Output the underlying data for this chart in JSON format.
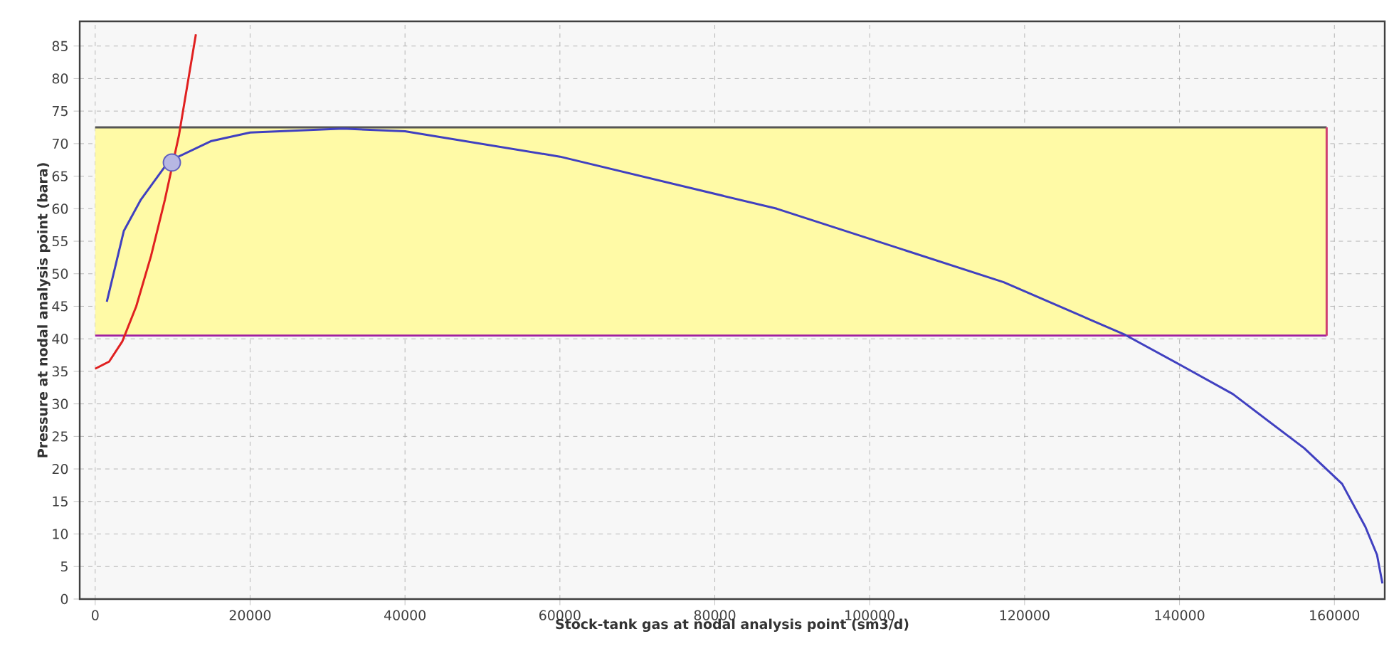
{
  "chart_data": {
    "type": "line",
    "xlabel": "Stock-tank gas at nodal analysis point (sm3/d)",
    "ylabel": "Pressure at nodal analysis point (bara)",
    "xlim": [
      -2000,
      166500
    ],
    "ylim": [
      0,
      88.8
    ],
    "xticks": [
      0,
      20000,
      40000,
      60000,
      80000,
      100000,
      120000,
      140000,
      160000
    ],
    "yticks": [
      0,
      5,
      10,
      15,
      20,
      25,
      30,
      35,
      40,
      45,
      50,
      55,
      60,
      65,
      70,
      75,
      80,
      85
    ],
    "grid": true,
    "series": [
      {
        "color": "#555555",
        "x": [
          0,
          159000
        ],
        "values": [
          72.5,
          72.5
        ],
        "lower": [
          40.5,
          40.5
        ],
        "upper": [
          72.5,
          72.5
        ]
      },
      {
        "color": "#a020a0",
        "x": [
          0,
          159000
        ],
        "values": [
          40.5,
          40.5
        ]
      },
      {
        "color": "#d04070",
        "x": [
          159000,
          159000
        ],
        "values": [
          40.5,
          72.5
        ]
      },
      {
        "color": "#4040c0",
        "x": [
          1500,
          3700,
          5900,
          9500,
          15000,
          20000,
          32000,
          40000,
          60000,
          88000,
          117300,
          133000,
          140700,
          146900,
          156100,
          161000,
          164000,
          165500,
          166200
        ],
        "values": [
          45.7,
          56.6,
          61.4,
          67.3,
          70.4,
          71.7,
          72.3,
          71.9,
          68.0,
          60.0,
          48.7,
          40.6,
          35.6,
          31.5,
          23.2,
          17.7,
          11.1,
          6.8,
          2.4
        ]
      },
      {
        "color": "#e02020",
        "x": [
          0,
          1800,
          3500,
          5300,
          7200,
          9000,
          10800,
          13000
        ],
        "values": [
          35.4,
          36.5,
          39.6,
          45.0,
          52.7,
          61.4,
          71.2,
          86.8
        ]
      },
      {
        "type": "scatter",
        "color": "#6060c0",
        "marker": "circle",
        "x": [
          9900
        ],
        "values": [
          67.1
        ]
      }
    ]
  }
}
